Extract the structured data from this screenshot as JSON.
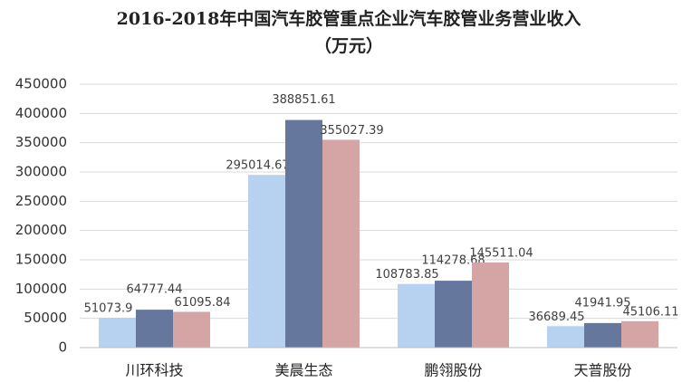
{
  "chart_data": {
    "type": "bar",
    "title": "2016-2018年中国汽车胶管重点企业汽车胶管业务营业收入",
    "subtitle": "（万元）",
    "categories": [
      "川环科技",
      "美晨生态",
      "鹏翎股份",
      "天普股份"
    ],
    "series": [
      {
        "color": "#b7d1f0",
        "values": [
          51073.9,
          295014.67,
          108783.85,
          36689.45
        ]
      },
      {
        "color": "#66779e",
        "values": [
          64777.44,
          388851.61,
          114278.68,
          41941.95
        ]
      },
      {
        "color": "#d5a4a4",
        "values": [
          61095.84,
          355027.39,
          145511.04,
          45106.11
        ]
      }
    ],
    "ylim": [
      0,
      450000
    ],
    "yticks": [
      0,
      50000,
      100000,
      150000,
      200000,
      250000,
      300000,
      350000,
      400000,
      450000
    ],
    "grid": true
  }
}
